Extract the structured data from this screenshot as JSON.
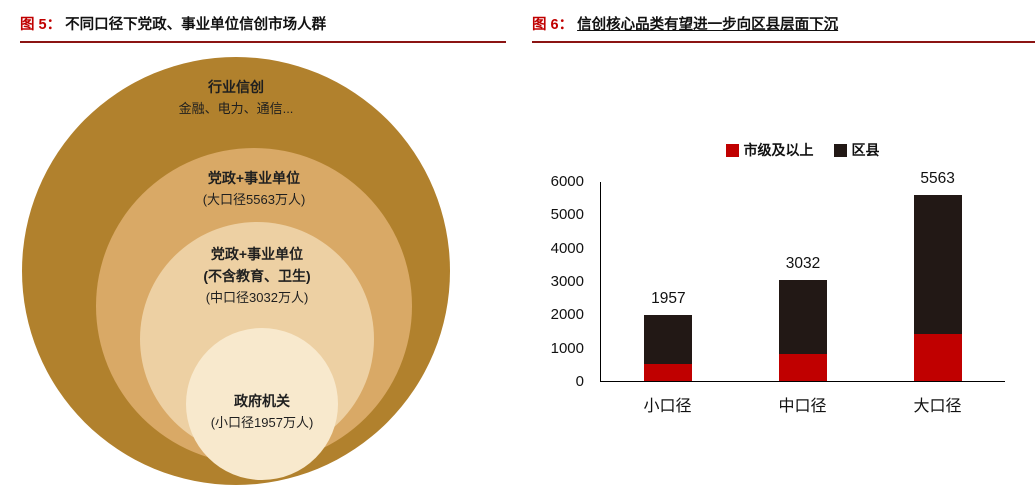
{
  "colors": {
    "accent_red": "#C00000",
    "header_rule": "#8B1413"
  },
  "left_panel": {
    "header": {
      "fig_label": "图 5：",
      "title": "不同口径下党政、事业单位信创市场人群"
    },
    "rings": [
      {
        "title": "行业信创",
        "subtitle": "金融、电力、通信...",
        "color": "#B1812D"
      },
      {
        "title": "党政+事业单位",
        "subtitle": "(大口径5563万人)",
        "color": "#D9A966"
      },
      {
        "title": "党政+事业单位",
        "title2": "(不含教育、卫生)",
        "subtitle": "(中口径3032万人)",
        "color": "#EDD0A3"
      },
      {
        "title": "政府机关",
        "subtitle": "(小口径1957万人)",
        "color": "#F8E9CD"
      }
    ]
  },
  "right_panel": {
    "header": {
      "fig_label": "图 6：",
      "title": "信创核心品类有望进一步向区县层面下沉"
    },
    "chart_data": {
      "type": "stacked-bar",
      "title": "",
      "categories": [
        "小口径",
        "中口径",
        "大口径"
      ],
      "series": [
        {
          "name": "市级及以上",
          "color": "#C00000",
          "values": [
            500,
            800,
            1400
          ]
        },
        {
          "name": "区县",
          "color": "#221815",
          "values": [
            1457,
            2232,
            4163
          ]
        }
      ],
      "totals": [
        1957,
        3032,
        5563
      ],
      "ylim": [
        0,
        6000
      ],
      "yticks": [
        0,
        1000,
        2000,
        3000,
        4000,
        5000,
        6000
      ],
      "legend_position": "top-center",
      "grid": false
    }
  }
}
